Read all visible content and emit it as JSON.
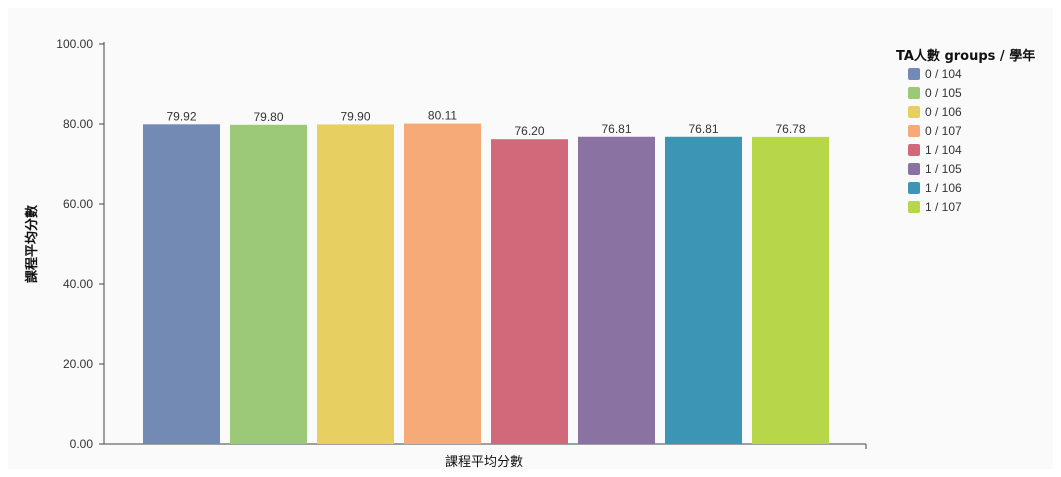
{
  "chart_data": {
    "type": "bar",
    "title": "",
    "xlabel": "課程平均分數",
    "ylabel": "課程平均分數",
    "ylim": [
      0,
      100
    ],
    "yticks": [
      "0.00",
      "20.00",
      "40.00",
      "60.00",
      "80.00",
      "100.00"
    ],
    "grid": false,
    "legend": {
      "title": "TA人數 groups / 學年",
      "position": "right"
    },
    "series": [
      {
        "name": "0 / 104",
        "value": 79.92,
        "label": "79.92",
        "color": "#738ab4"
      },
      {
        "name": "0 / 105",
        "value": 79.8,
        "label": "79.80",
        "color": "#9cc978"
      },
      {
        "name": "0 / 106",
        "value": 79.9,
        "label": "79.90",
        "color": "#e8cf62"
      },
      {
        "name": "0 / 107",
        "value": 80.11,
        "label": "80.11",
        "color": "#f6aa78"
      },
      {
        "name": "1 / 104",
        "value": 76.2,
        "label": "76.20",
        "color": "#d2697a"
      },
      {
        "name": "1 / 105",
        "value": 76.81,
        "label": "76.81",
        "color": "#8a72a3"
      },
      {
        "name": "1 / 106",
        "value": 76.81,
        "label": "76.81",
        "color": "#3c95b5"
      },
      {
        "name": "1 / 107",
        "value": 76.78,
        "label": "76.78",
        "color": "#b7d649"
      }
    ]
  },
  "colors": {
    "background": "#ffffff",
    "plot_background": "#fafafa",
    "axis": "#444444"
  }
}
